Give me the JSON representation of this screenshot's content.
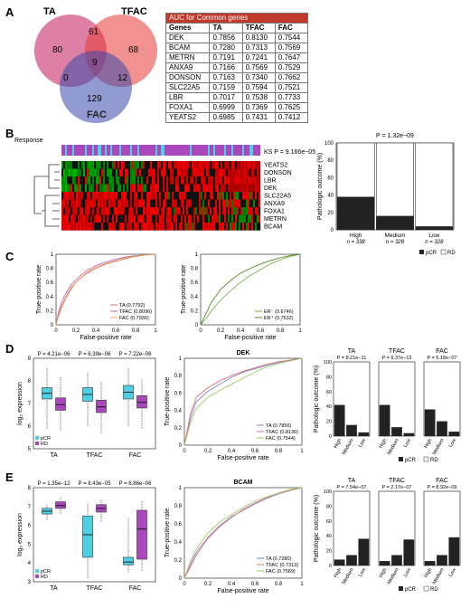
{
  "panels": {
    "A": "A",
    "B": "B",
    "C": "C",
    "D": "D",
    "E": "E"
  },
  "venn": {
    "labels": {
      "TA": "TA",
      "TFAC": "TFAC",
      "FAC": "FAC"
    },
    "counts": {
      "ta_only": "80",
      "ta_tfac": "61",
      "tfac_only": "68",
      "all": "9",
      "ta_fac": "0",
      "tfac_fac": "12",
      "fac_only": "129"
    },
    "colors": {
      "TA": "#c2185b",
      "TFAC": "#e53935",
      "FAC": "#3949ab"
    }
  },
  "auc_table": {
    "title": "AUC for Common genes",
    "headers": [
      "Genes",
      "TA",
      "TFAC",
      "FAC"
    ],
    "rows": [
      [
        "DEK",
        "0.7856",
        "0.8130",
        "0.7544"
      ],
      [
        "BCAM",
        "0.7280",
        "0.7313",
        "0.7569"
      ],
      [
        "METRN",
        "0.7191",
        "0.7241",
        "0.7647"
      ],
      [
        "ANXA9",
        "0.7166",
        "0.7569",
        "0.7529"
      ],
      [
        "DONSON",
        "0.7163",
        "0.7340",
        "0.7662"
      ],
      [
        "SLC22A5",
        "0.7159",
        "0.7594",
        "0.7521"
      ],
      [
        "LBR",
        "0.7017",
        "0.7538",
        "0.7733"
      ],
      [
        "FOXA1",
        "0.6999",
        "0.7369",
        "0.7625"
      ],
      [
        "YEATS2",
        "0.6985",
        "0.7431",
        "0.7412"
      ]
    ]
  },
  "heatmap": {
    "response_label": "Response",
    "ks_label": "KS P = 9.166e−05",
    "genes": [
      "YEATS2",
      "DONSON",
      "LBR",
      "DEK",
      "SLC22A5",
      "ANXA9",
      "FOXA1",
      "METRN",
      "BCAM"
    ]
  },
  "legend_pcr_rd": {
    "pcr": "pCR",
    "rd": "RD"
  },
  "chart_data": [
    {
      "id": "B-bar",
      "type": "bar",
      "title": "P = 1.32e−09",
      "ylabel": "Pathologic outcome (%)",
      "categories": [
        "High",
        "Medium",
        "Low"
      ],
      "n_labels": [
        "n = 338",
        "n = 328",
        "n = 328"
      ],
      "ylim": [
        0,
        100
      ],
      "series": [
        {
          "name": "pCR",
          "values": [
            38,
            16,
            4
          ]
        },
        {
          "name": "RD",
          "values": [
            62,
            84,
            96
          ]
        }
      ]
    },
    {
      "id": "C-roc1",
      "type": "line",
      "xlabel": "False-positive rate",
      "ylabel": "True-positive rate",
      "xlim": [
        0,
        1
      ],
      "ylim": [
        0,
        1
      ],
      "ticks": [
        "0",
        "0.2",
        "0.4",
        "0.6",
        "0.8",
        "1"
      ],
      "series": [
        {
          "name": "TA (0.7792)",
          "color": "#e57373",
          "x": [
            0,
            0.02,
            0.05,
            0.1,
            0.15,
            0.2,
            0.3,
            0.4,
            0.5,
            0.6,
            0.7,
            0.8,
            0.9,
            1
          ],
          "y": [
            0,
            0.12,
            0.25,
            0.4,
            0.52,
            0.6,
            0.72,
            0.8,
            0.86,
            0.9,
            0.94,
            0.97,
            0.99,
            1
          ]
        },
        {
          "name": "TFAC (0.8096)",
          "color": "#ba68c8",
          "x": [
            0,
            0.02,
            0.05,
            0.1,
            0.15,
            0.2,
            0.3,
            0.4,
            0.5,
            0.6,
            0.7,
            0.8,
            0.9,
            1
          ],
          "y": [
            0,
            0.15,
            0.3,
            0.45,
            0.56,
            0.64,
            0.76,
            0.84,
            0.89,
            0.93,
            0.96,
            0.98,
            0.99,
            1
          ]
        },
        {
          "name": "FAC (0.7936)",
          "color": "#e6a34c",
          "x": [
            0,
            0.02,
            0.05,
            0.1,
            0.15,
            0.2,
            0.3,
            0.4,
            0.5,
            0.6,
            0.7,
            0.8,
            0.9,
            1
          ],
          "y": [
            0,
            0.1,
            0.22,
            0.38,
            0.5,
            0.6,
            0.73,
            0.82,
            0.87,
            0.91,
            0.95,
            0.97,
            0.99,
            1
          ]
        }
      ]
    },
    {
      "id": "C-roc2",
      "type": "line",
      "xlabel": "False-positive rate",
      "ylabel": "True-positive rate",
      "xlim": [
        0,
        1
      ],
      "ylim": [
        0,
        1
      ],
      "ticks": [
        "0",
        "0.2",
        "0.4",
        "0.6",
        "0.8",
        "1"
      ],
      "series": [
        {
          "name": "ER⁻ (0.6746)",
          "color": "#7cb342",
          "x": [
            0,
            0.05,
            0.1,
            0.2,
            0.3,
            0.4,
            0.5,
            0.6,
            0.7,
            0.8,
            0.9,
            1
          ],
          "y": [
            0,
            0.08,
            0.18,
            0.35,
            0.48,
            0.6,
            0.7,
            0.78,
            0.86,
            0.92,
            0.97,
            1
          ]
        },
        {
          "name": "ER⁺ (0.7532)",
          "color": "#558b2f",
          "x": [
            0,
            0.05,
            0.1,
            0.2,
            0.3,
            0.4,
            0.5,
            0.6,
            0.7,
            0.8,
            0.9,
            1
          ],
          "y": [
            0,
            0.15,
            0.3,
            0.5,
            0.63,
            0.73,
            0.8,
            0.86,
            0.91,
            0.95,
            0.98,
            1
          ]
        }
      ]
    },
    {
      "id": "D-box",
      "type": "box",
      "ylabel": "log₂ expression",
      "ylim": [
        5,
        9
      ],
      "yticks": [
        "5",
        "6",
        "7",
        "8",
        "9"
      ],
      "groups": [
        "TA",
        "TFAC",
        "FAC"
      ],
      "p_values": [
        "P = 4.21e−06",
        "P = 6.39e−06",
        "P = 7.22e−06"
      ],
      "series": [
        {
          "name": "pCR",
          "color": "#4dd0e1",
          "boxes": [
            [
              5.9,
              7.2,
              7.45,
              7.7,
              8.6
            ],
            [
              6.0,
              7.1,
              7.4,
              7.7,
              8.4
            ],
            [
              6.0,
              7.2,
              7.5,
              7.8,
              8.6
            ]
          ]
        },
        {
          "name": "RD",
          "color": "#ab47bc",
          "boxes": [
            [
              5.8,
              6.7,
              6.95,
              7.25,
              8.2
            ],
            [
              5.7,
              6.6,
              6.85,
              7.15,
              8.0
            ],
            [
              5.9,
              6.8,
              7.05,
              7.35,
              8.1
            ]
          ]
        }
      ]
    },
    {
      "id": "D-roc",
      "type": "line",
      "title": "DEK",
      "xlabel": "False-positive rate",
      "ylabel": "True-positive rate",
      "xlim": [
        0,
        1
      ],
      "ylim": [
        0,
        1
      ],
      "ticks": [
        "0",
        "0.2",
        "0.4",
        "0.6",
        "0.8",
        "1"
      ],
      "series": [
        {
          "name": "TA (0.7856)",
          "color": "#7986cb",
          "x": [
            0,
            0.05,
            0.1,
            0.2,
            0.3,
            0.4,
            0.5,
            0.6,
            0.7,
            0.8,
            0.9,
            1
          ],
          "y": [
            0,
            0.3,
            0.5,
            0.62,
            0.7,
            0.78,
            0.84,
            0.88,
            0.92,
            0.95,
            0.98,
            1
          ]
        },
        {
          "name": "TFAC (0.8130)",
          "color": "#e57373",
          "x": [
            0,
            0.05,
            0.1,
            0.2,
            0.3,
            0.4,
            0.5,
            0.6,
            0.7,
            0.8,
            0.9,
            1
          ],
          "y": [
            0,
            0.35,
            0.55,
            0.66,
            0.74,
            0.8,
            0.85,
            0.89,
            0.93,
            0.96,
            0.98,
            1
          ]
        },
        {
          "name": "FAC (0.7544)",
          "color": "#9ccc65",
          "x": [
            0,
            0.05,
            0.1,
            0.2,
            0.3,
            0.4,
            0.5,
            0.6,
            0.7,
            0.8,
            0.9,
            1
          ],
          "y": [
            0,
            0.25,
            0.42,
            0.55,
            0.63,
            0.7,
            0.77,
            0.84,
            0.9,
            0.94,
            0.97,
            1
          ]
        }
      ]
    },
    {
      "id": "D-bars",
      "type": "bar",
      "ylabel": "Pathologic outcome (%)",
      "ylim": [
        0,
        100
      ],
      "panels": [
        {
          "title": "TA",
          "p": "P = 8.21e−11",
          "categories": [
            "High",
            "Medium",
            "Low"
          ],
          "pcr": [
            42,
            15,
            5
          ]
        },
        {
          "title": "TFAC",
          "p": "P = 9.37e−13",
          "categories": [
            "High",
            "Medium",
            "Low"
          ],
          "pcr": [
            42,
            12,
            4
          ]
        },
        {
          "title": "FAC",
          "p": "P = 5.18e−07",
          "categories": [
            "High",
            "Medium",
            "Low"
          ],
          "pcr": [
            36,
            20,
            6
          ]
        }
      ]
    },
    {
      "id": "E-box",
      "type": "box",
      "ylabel": "log₂ expression",
      "ylim": [
        3,
        8
      ],
      "yticks": [
        "3",
        "4",
        "5",
        "6",
        "7",
        "8"
      ],
      "groups": [
        "TA",
        "TFAC",
        "FAC"
      ],
      "p_values": [
        "P = 1.35e−12",
        "P = 8.43e−05",
        "P = 6.86e−06"
      ],
      "series": [
        {
          "name": "pCR",
          "color": "#4dd0e1",
          "boxes": [
            [
              6.3,
              6.6,
              6.75,
              6.9,
              7.1
            ],
            [
              3.2,
              4.3,
              5.5,
              6.5,
              7.2
            ],
            [
              3.5,
              3.9,
              4.05,
              4.3,
              6.4
            ]
          ]
        },
        {
          "name": "RD",
          "color": "#ab47bc",
          "boxes": [
            [
              6.6,
              6.9,
              7.05,
              7.25,
              7.5
            ],
            [
              6.2,
              6.7,
              6.9,
              7.1,
              7.4
            ],
            [
              3.6,
              4.2,
              5.8,
              6.8,
              7.3
            ]
          ]
        }
      ]
    },
    {
      "id": "E-roc",
      "type": "line",
      "title": "BCAM",
      "xlabel": "False-positive rate",
      "ylabel": "True-positive rate",
      "xlim": [
        0,
        1
      ],
      "ylim": [
        0,
        1
      ],
      "ticks": [
        "0",
        "0.2",
        "0.4",
        "0.6",
        "0.8",
        "1"
      ],
      "series": [
        {
          "name": "TA (0.7280)",
          "color": "#7986cb",
          "x": [
            0,
            0.05,
            0.1,
            0.2,
            0.3,
            0.4,
            0.5,
            0.6,
            0.7,
            0.8,
            0.9,
            1
          ],
          "y": [
            0,
            0.15,
            0.28,
            0.45,
            0.58,
            0.68,
            0.75,
            0.82,
            0.88,
            0.93,
            0.97,
            1
          ]
        },
        {
          "name": "TFAC (0.7313)",
          "color": "#e57373",
          "x": [
            0,
            0.05,
            0.1,
            0.2,
            0.3,
            0.4,
            0.5,
            0.6,
            0.7,
            0.8,
            0.9,
            1
          ],
          "y": [
            0,
            0.12,
            0.25,
            0.44,
            0.57,
            0.67,
            0.76,
            0.83,
            0.89,
            0.94,
            0.97,
            1
          ]
        },
        {
          "name": "FAC (0.7569)",
          "color": "#9ccc65",
          "x": [
            0,
            0.05,
            0.1,
            0.2,
            0.3,
            0.4,
            0.5,
            0.6,
            0.7,
            0.8,
            0.9,
            1
          ],
          "y": [
            0,
            0.18,
            0.32,
            0.5,
            0.62,
            0.7,
            0.78,
            0.85,
            0.9,
            0.94,
            0.98,
            1
          ]
        }
      ]
    },
    {
      "id": "E-bars",
      "type": "bar",
      "ylabel": "Pathologic outcome (%)",
      "ylim": [
        0,
        100
      ],
      "panels": [
        {
          "title": "TA",
          "p": "P = 7.54e−07",
          "categories": [
            "High",
            "Medium",
            "Low"
          ],
          "pcr": [
            8,
            14,
            36
          ]
        },
        {
          "title": "TFAC",
          "p": "P = 2.17e−07",
          "categories": [
            "High",
            "Medium",
            "Low"
          ],
          "pcr": [
            6,
            14,
            35
          ]
        },
        {
          "title": "FAC",
          "p": "P = 8.92e−09",
          "categories": [
            "High",
            "Medium",
            "Low"
          ],
          "pcr": [
            6,
            14,
            38
          ]
        }
      ]
    }
  ]
}
